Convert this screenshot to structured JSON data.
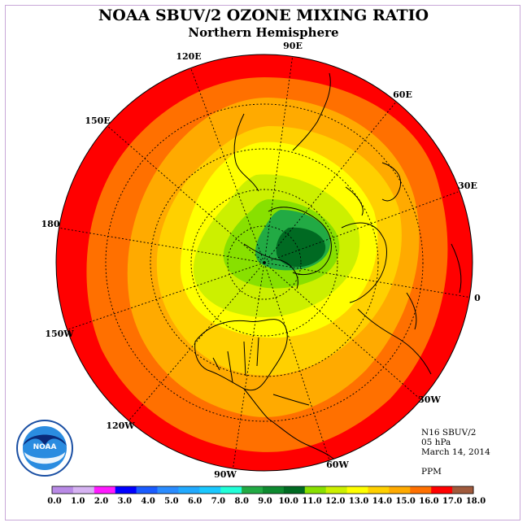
{
  "title": "NOAA SBUV/2 OZONE MIXING RATIO",
  "subtitle": "Northern Hemisphere",
  "meridian_labels": {
    "lon_90e": "90E",
    "lon_60e": "60E",
    "lon_30e": "30E",
    "lon_0": "0",
    "lon_30w": "30W",
    "lon_60w": "60W",
    "lon_90w": "90W",
    "lon_120w": "120W",
    "lon_150w": "150W",
    "lon_180": "180",
    "lon_150e": "150E",
    "lon_120e": "120E"
  },
  "info": {
    "instrument": "N16 SBUV/2",
    "level": "05 hPa",
    "date": "March 14, 2014",
    "units": "PPM"
  },
  "logo_text": "NOAA",
  "colorbar": {
    "ticks": [
      "0.0",
      "1.0",
      "2.0",
      "3.0",
      "4.0",
      "5.0",
      "6.0",
      "7.0",
      "8.0",
      "9.0",
      "10.0",
      "11.0",
      "12.0",
      "13.0",
      "14.0",
      "15.0",
      "16.0",
      "17.0",
      "18.0"
    ],
    "colors": [
      "#b98ae6",
      "#d6b3f2",
      "#ff1aff",
      "#0000ff",
      "#1a5cff",
      "#2a8cff",
      "#22aaff",
      "#1ac8ff",
      "#22ffd8",
      "#22aa44",
      "#0e8a30",
      "#006a22",
      "#88e000",
      "#ccf000",
      "#ffff00",
      "#ffd000",
      "#ffaa00",
      "#ff7000",
      "#ff0000",
      "#a05a3c"
    ]
  },
  "colors": {
    "frame": "#c9a8d8",
    "ocean_edge": "#ff0000"
  }
}
